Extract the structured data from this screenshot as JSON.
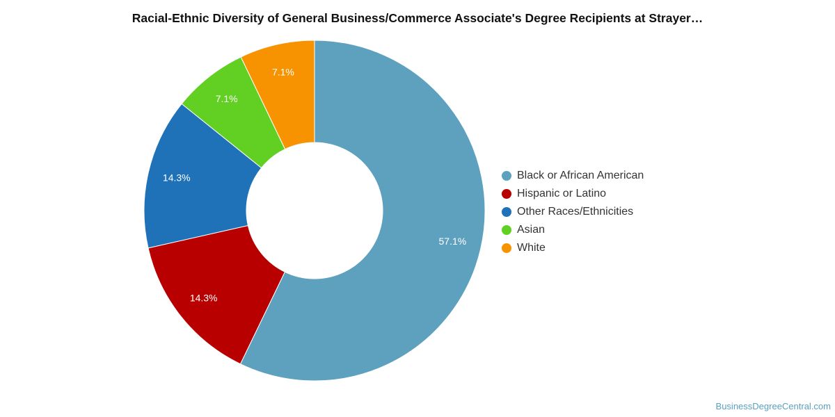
{
  "title": "Racial-Ethnic Diversity of General Business/Commerce Associate's Degree Recipients at Strayer…",
  "footer": "BusinessDegreeCentral.com",
  "chart_data": {
    "type": "pie",
    "donut": true,
    "legend_position": "right",
    "slices": [
      {
        "name": "Black or African American",
        "value": 57.1,
        "label": "57.1%",
        "color": "#5ea1bf"
      },
      {
        "name": "Hispanic or Latino",
        "value": 14.3,
        "label": "14.3%",
        "color": "#b90000"
      },
      {
        "name": "Other Races/Ethnicities",
        "value": 14.3,
        "label": "14.3%",
        "color": "#1f71b8"
      },
      {
        "name": "Asian",
        "value": 7.1,
        "label": "7.1%",
        "color": "#62cf23"
      },
      {
        "name": "White",
        "value": 7.1,
        "label": "7.1%",
        "color": "#f79300"
      }
    ]
  }
}
